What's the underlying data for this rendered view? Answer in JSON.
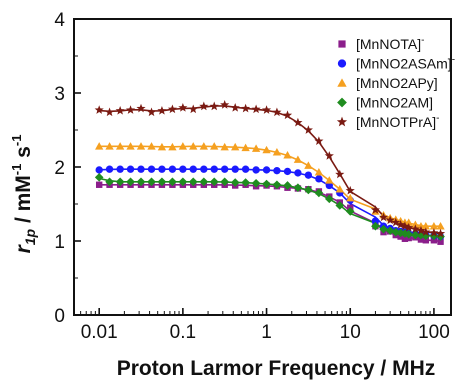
{
  "chart_data": {
    "type": "scatter",
    "xlabel": "Proton Larmor Frequency / MHz",
    "ylabel": "r1p / mM-1 s-1",
    "ylabel_parts": {
      "main": "r",
      "sub": "1p",
      "unit": " / mM",
      "sup1": "-1",
      "mid": " s",
      "sup2": "-1"
    },
    "xscale": "log",
    "xlim": [
      0.005,
      160
    ],
    "ylim": [
      0,
      4
    ],
    "xticks": [
      {
        "value": 0.01,
        "label": "0.01"
      },
      {
        "value": 0.1,
        "label": "0.1"
      },
      {
        "value": 1,
        "label": "1"
      },
      {
        "value": 10,
        "label": "10"
      },
      {
        "value": 100,
        "label": "100"
      }
    ],
    "yticks": [
      {
        "value": 0,
        "label": "0"
      },
      {
        "value": 1,
        "label": "1"
      },
      {
        "value": 2,
        "label": "2"
      },
      {
        "value": 3,
        "label": "3"
      },
      {
        "value": 4,
        "label": "4"
      }
    ],
    "grid": false,
    "legend_position": "top-right",
    "series": [
      {
        "name": "[MnNOTA]-",
        "label_main": "[MnNOTA]",
        "label_sup": "-",
        "color": "#8b1e8b",
        "marker": "square",
        "x": [
          0.01,
          0.0133,
          0.0178,
          0.0237,
          0.0316,
          0.0422,
          0.0562,
          0.075,
          0.1,
          0.133,
          0.178,
          0.237,
          0.316,
          0.422,
          0.562,
          0.75,
          1,
          1.33,
          1.78,
          2.37,
          3.16,
          4.22,
          5.62,
          7.5,
          10,
          20,
          25,
          30,
          35,
          40,
          45,
          50,
          60,
          70,
          80,
          100,
          120
        ],
        "y": [
          1.76,
          1.76,
          1.76,
          1.76,
          1.76,
          1.76,
          1.76,
          1.76,
          1.76,
          1.76,
          1.76,
          1.76,
          1.76,
          1.75,
          1.76,
          1.74,
          1.75,
          1.74,
          1.72,
          1.71,
          1.7,
          1.67,
          1.6,
          1.52,
          1.45,
          1.2,
          1.12,
          1.13,
          1.08,
          1.06,
          1.03,
          1.04,
          1.05,
          1.02,
          1.01,
          1.01,
          0.99
        ]
      },
      {
        "name": "[MnNO2ASAm]-",
        "label_main": "[MnNO2ASAm]",
        "label_sup": "-",
        "color": "#1a1aff",
        "marker": "circle",
        "x": [
          0.01,
          0.0133,
          0.0178,
          0.0237,
          0.0316,
          0.0422,
          0.0562,
          0.075,
          0.1,
          0.133,
          0.178,
          0.237,
          0.316,
          0.422,
          0.562,
          0.75,
          1,
          1.33,
          1.78,
          2.37,
          3.16,
          4.22,
          5.62,
          7.5,
          10,
          20,
          25,
          30,
          35,
          40,
          45,
          50,
          60,
          70,
          80,
          100,
          120
        ],
        "y": [
          1.96,
          1.97,
          1.97,
          1.97,
          1.97,
          1.97,
          1.97,
          1.97,
          1.97,
          1.97,
          1.97,
          1.97,
          1.97,
          1.97,
          1.97,
          1.96,
          1.96,
          1.95,
          1.94,
          1.92,
          1.89,
          1.84,
          1.75,
          1.65,
          1.55,
          1.27,
          1.2,
          1.17,
          1.14,
          1.13,
          1.12,
          1.1,
          1.1,
          1.09,
          1.08,
          1.07,
          1.06
        ]
      },
      {
        "name": "[MnNO2APy]",
        "label_main": "[MnNO2APy]",
        "label_sup": "",
        "color": "#f5a020",
        "marker": "triangle",
        "x": [
          0.01,
          0.0133,
          0.0178,
          0.0237,
          0.0316,
          0.0422,
          0.0562,
          0.075,
          0.1,
          0.133,
          0.178,
          0.237,
          0.316,
          0.422,
          0.562,
          0.75,
          1,
          1.33,
          1.78,
          2.37,
          3.16,
          4.22,
          5.62,
          7.5,
          10,
          20,
          25,
          30,
          35,
          40,
          45,
          50,
          60,
          70,
          80,
          100,
          120
        ],
        "y": [
          2.28,
          2.28,
          2.28,
          2.28,
          2.28,
          2.28,
          2.27,
          2.27,
          2.28,
          2.28,
          2.28,
          2.28,
          2.27,
          2.27,
          2.26,
          2.25,
          2.23,
          2.2,
          2.16,
          2.1,
          2.02,
          1.93,
          1.82,
          1.7,
          1.58,
          1.4,
          1.35,
          1.31,
          1.29,
          1.27,
          1.25,
          1.25,
          1.22,
          1.2,
          1.2,
          1.2,
          1.2
        ]
      },
      {
        "name": "[MnNO2AM]",
        "label_main": "[MnNO2AM]",
        "label_sup": "",
        "color": "#1f8c1f",
        "marker": "diamond",
        "x": [
          0.01,
          0.0133,
          0.0178,
          0.0237,
          0.0316,
          0.0422,
          0.0562,
          0.075,
          0.1,
          0.133,
          0.178,
          0.237,
          0.316,
          0.422,
          0.562,
          0.75,
          1,
          1.33,
          1.78,
          2.37,
          3.16,
          4.22,
          5.62,
          7.5,
          10,
          20,
          25,
          30,
          35,
          40,
          45,
          50,
          60,
          70,
          80,
          100,
          120
        ],
        "y": [
          1.86,
          1.8,
          1.8,
          1.8,
          1.8,
          1.8,
          1.8,
          1.8,
          1.8,
          1.8,
          1.8,
          1.8,
          1.8,
          1.79,
          1.79,
          1.78,
          1.77,
          1.76,
          1.75,
          1.72,
          1.69,
          1.65,
          1.57,
          1.48,
          1.4,
          1.2,
          1.16,
          1.14,
          1.12,
          1.11,
          1.1,
          1.09,
          1.08,
          1.08,
          1.07,
          1.07,
          1.06
        ]
      },
      {
        "name": "[MnNOTPrA]-",
        "label_main": "[MnNOTPrA]",
        "label_sup": "-",
        "color": "#7a1a12",
        "marker": "star",
        "x": [
          0.01,
          0.0133,
          0.0178,
          0.0237,
          0.0316,
          0.0422,
          0.0562,
          0.075,
          0.1,
          0.133,
          0.178,
          0.237,
          0.316,
          0.422,
          0.562,
          0.75,
          1,
          1.33,
          1.78,
          2.37,
          3.16,
          4.22,
          5.62,
          7.5,
          10,
          20,
          25,
          30,
          35,
          40,
          45,
          50,
          60,
          70,
          80,
          100,
          120
        ],
        "y": [
          2.77,
          2.74,
          2.76,
          2.77,
          2.79,
          2.74,
          2.76,
          2.78,
          2.8,
          2.78,
          2.82,
          2.82,
          2.84,
          2.8,
          2.79,
          2.78,
          2.77,
          2.74,
          2.7,
          2.6,
          2.5,
          2.35,
          2.15,
          1.9,
          1.68,
          1.42,
          1.32,
          1.28,
          1.25,
          1.22,
          1.2,
          1.18,
          1.16,
          1.14,
          1.12,
          1.11,
          1.1
        ]
      }
    ]
  }
}
